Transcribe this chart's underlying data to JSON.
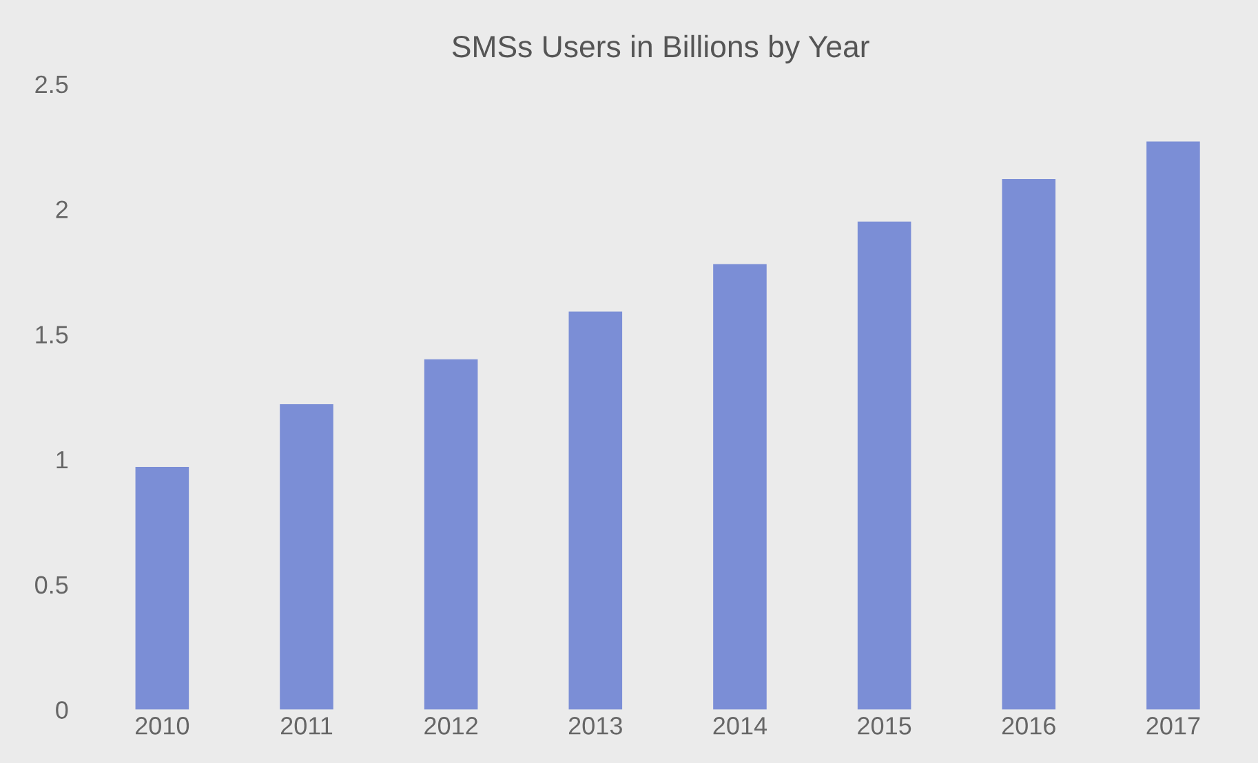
{
  "chart_data": {
    "type": "bar",
    "title": "SMSs Users in Billions by Year",
    "categories": [
      "2010",
      "2011",
      "2012",
      "2013",
      "2014",
      "2015",
      "2016",
      "2017"
    ],
    "values": [
      0.97,
      1.22,
      1.4,
      1.59,
      1.78,
      1.95,
      2.12,
      2.27
    ],
    "color": "#7b8ed6",
    "ylim": [
      0,
      2.5
    ],
    "yticks": [
      0,
      0.5,
      1,
      1.5,
      2,
      2.5
    ],
    "grid": false
  }
}
